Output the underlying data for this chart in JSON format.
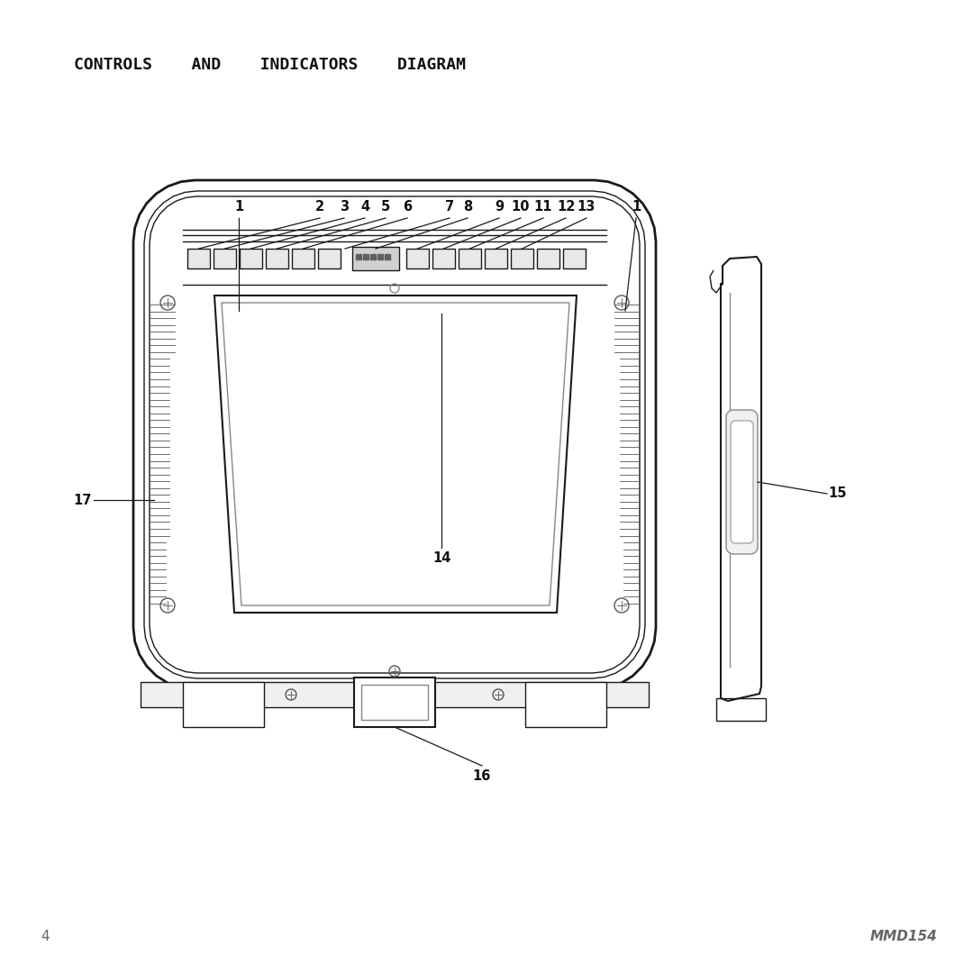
{
  "title": "CONTROLS    AND    INDICATORS    DIAGRAM",
  "title_fontsize": 13,
  "page_number": "4",
  "model": "MMD154",
  "bg_color": "#ffffff",
  "lc": "#1a1a1a",
  "lc_light": "#888888",
  "label_fs": 10.5
}
